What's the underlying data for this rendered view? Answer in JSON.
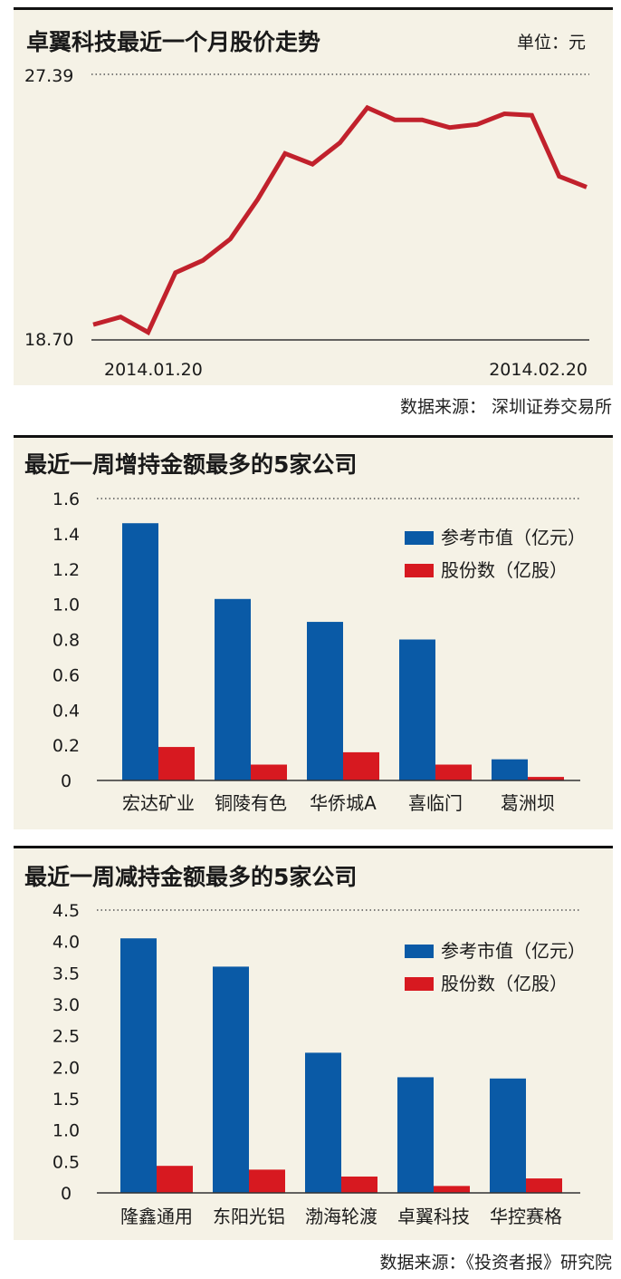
{
  "chart_data": [
    {
      "type": "line",
      "title": "卓翼科技最近一个月股价走势",
      "unit_label": "单位：元",
      "ylim": [
        18.7,
        27.39
      ],
      "y_tick_labels": [
        "27.39",
        "18.70"
      ],
      "x_tick_labels": [
        "2014.01.20",
        "2014.02.20"
      ],
      "series": [
        {
          "color": "#c1212c",
          "values": [
            19.2,
            19.45,
            18.95,
            20.9,
            21.3,
            22.0,
            23.3,
            24.8,
            24.45,
            25.15,
            26.3,
            25.9,
            25.9,
            25.65,
            25.75,
            26.1,
            26.05,
            24.05,
            23.7
          ]
        }
      ],
      "source": "数据来源： 深圳证券交易所"
    },
    {
      "type": "bar",
      "title": "最近一周增持金额最多的5家公司",
      "categories": [
        "宏达矿业",
        "铜陵有色",
        "华侨城A",
        "喜临门",
        "葛洲坝"
      ],
      "ylim": [
        0,
        1.6
      ],
      "y_tick_labels": [
        "0",
        "0.2",
        "0.4",
        "0.6",
        "0.8",
        "1.0",
        "1.2",
        "1.4",
        "1.6"
      ],
      "series": [
        {
          "name": "参考市值（亿元）",
          "color": "#0a5aa6",
          "values": [
            1.46,
            1.03,
            0.9,
            0.8,
            0.12
          ]
        },
        {
          "name": "股份数（亿股）",
          "color": "#d71920",
          "values": [
            0.19,
            0.09,
            0.16,
            0.09,
            0.02
          ]
        }
      ]
    },
    {
      "type": "bar",
      "title": "最近一周减持金额最多的5家公司",
      "categories": [
        "隆鑫通用",
        "东阳光铝",
        "渤海轮渡",
        "卓翼科技",
        "华控赛格"
      ],
      "ylim": [
        0,
        4.5
      ],
      "y_tick_labels": [
        "0",
        "0.5",
        "1.0",
        "1.5",
        "2.0",
        "2.5",
        "3.0",
        "3.5",
        "4.0",
        "4.5"
      ],
      "series": [
        {
          "name": "参考市值（亿元）",
          "color": "#0a5aa6",
          "values": [
            4.05,
            3.6,
            2.23,
            1.84,
            1.82
          ]
        },
        {
          "name": "股份数（亿股）",
          "color": "#d71920",
          "values": [
            0.43,
            0.37,
            0.26,
            0.11,
            0.23
          ]
        }
      ],
      "source": "数据来源：《投资者报》研究院"
    }
  ]
}
